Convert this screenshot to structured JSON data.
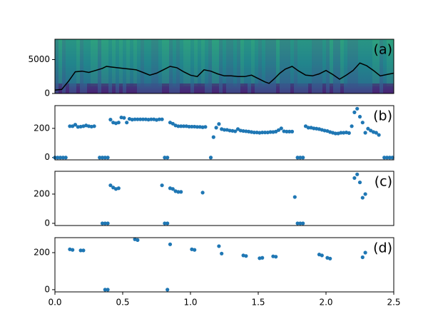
{
  "chart_data": [
    {
      "type": "line",
      "color": "#000000",
      "annotation": "(a)",
      "x": [
        0.0,
        0.05,
        0.1,
        0.15,
        0.2,
        0.25,
        0.3,
        0.35,
        0.38,
        0.42,
        0.5,
        0.55,
        0.6,
        0.65,
        0.7,
        0.75,
        0.8,
        0.85,
        0.9,
        0.95,
        1.0,
        1.05,
        1.1,
        1.15,
        1.2,
        1.25,
        1.3,
        1.35,
        1.4,
        1.45,
        1.5,
        1.55,
        1.58,
        1.62,
        1.66,
        1.7,
        1.75,
        1.8,
        1.85,
        1.9,
        1.95,
        2.0,
        2.05,
        2.1,
        2.15,
        2.2,
        2.25,
        2.3,
        2.35,
        2.4,
        2.45,
        2.5
      ],
      "values": [
        500,
        600,
        1800,
        3200,
        3300,
        3100,
        3400,
        3700,
        4000,
        3900,
        3700,
        3600,
        3500,
        3100,
        2700,
        3000,
        3500,
        4000,
        3800,
        3200,
        2700,
        2500,
        3500,
        3300,
        2900,
        2600,
        2600,
        2500,
        2500,
        2700,
        2200,
        1700,
        1500,
        2200,
        3000,
        3600,
        4000,
        3300,
        2700,
        2600,
        2900,
        3400,
        2800,
        2100,
        2700,
        3400,
        4500,
        4100,
        3400,
        2600,
        2800,
        3000
      ],
      "xlim": [
        0,
        2.5
      ],
      "ylim": [
        0,
        8000
      ],
      "yticks": [
        0,
        5000
      ]
    },
    {
      "type": "scatter",
      "color": "#1f77b4",
      "annotation": "(b)",
      "x": [
        0.0,
        0.02,
        0.04,
        0.06,
        0.08,
        0.11,
        0.13,
        0.15,
        0.17,
        0.19,
        0.21,
        0.23,
        0.25,
        0.27,
        0.29,
        0.33,
        0.35,
        0.37,
        0.39,
        0.41,
        0.43,
        0.45,
        0.47,
        0.49,
        0.51,
        0.53,
        0.55,
        0.57,
        0.59,
        0.61,
        0.63,
        0.65,
        0.67,
        0.69,
        0.71,
        0.73,
        0.75,
        0.77,
        0.79,
        0.81,
        0.83,
        0.85,
        0.87,
        0.89,
        0.91,
        0.93,
        0.95,
        0.97,
        0.99,
        1.01,
        1.03,
        1.05,
        1.07,
        1.09,
        1.11,
        1.15,
        1.17,
        1.19,
        1.21,
        1.23,
        1.25,
        1.27,
        1.29,
        1.31,
        1.33,
        1.35,
        1.37,
        1.39,
        1.41,
        1.43,
        1.45,
        1.47,
        1.49,
        1.51,
        1.53,
        1.55,
        1.57,
        1.59,
        1.61,
        1.63,
        1.65,
        1.67,
        1.69,
        1.71,
        1.73,
        1.75,
        1.79,
        1.81,
        1.83,
        1.85,
        1.87,
        1.89,
        1.91,
        1.93,
        1.95,
        1.97,
        1.99,
        2.01,
        2.03,
        2.05,
        2.07,
        2.09,
        2.11,
        2.13,
        2.15,
        2.17,
        2.19,
        2.21,
        2.23,
        2.25,
        2.27,
        2.29,
        2.31,
        2.33,
        2.35,
        2.37,
        2.39,
        2.43,
        2.45,
        2.47,
        2.49
      ],
      "values": [
        0,
        0,
        0,
        0,
        0,
        215,
        215,
        225,
        210,
        212,
        215,
        220,
        215,
        212,
        215,
        0,
        0,
        0,
        0,
        260,
        240,
        235,
        240,
        275,
        272,
        240,
        265,
        260,
        262,
        262,
        262,
        262,
        262,
        260,
        262,
        262,
        258,
        262,
        262,
        0,
        0,
        240,
        232,
        220,
        215,
        215,
        215,
        215,
        212,
        212,
        212,
        210,
        210,
        208,
        210,
        0,
        140,
        205,
        230,
        195,
        190,
        190,
        185,
        183,
        180,
        195,
        185,
        182,
        180,
        178,
        175,
        172,
        172,
        170,
        172,
        172,
        172,
        175,
        175,
        178,
        188,
        200,
        180,
        178,
        178,
        178,
        0,
        0,
        0,
        215,
        205,
        205,
        200,
        198,
        195,
        190,
        185,
        182,
        175,
        170,
        165,
        165,
        170,
        170,
        172,
        168,
        215,
        310,
        335,
        280,
        240,
        170,
        198,
        185,
        175,
        170,
        155,
        0,
        0,
        0,
        0
      ],
      "xlim": [
        0,
        2.5
      ],
      "ylim": [
        -16,
        356
      ],
      "yticks": [
        0,
        200
      ]
    },
    {
      "type": "scatter",
      "color": "#1f77b4",
      "annotation": "(c)",
      "x": [
        0.35,
        0.37,
        0.39,
        0.41,
        0.43,
        0.45,
        0.47,
        0.79,
        0.81,
        0.83,
        0.85,
        0.87,
        0.89,
        0.91,
        0.93,
        1.09,
        1.77,
        1.79,
        1.81,
        1.83,
        2.21,
        2.23,
        2.25,
        2.27,
        2.29
      ],
      "values": [
        0,
        0,
        0,
        260,
        245,
        235,
        240,
        260,
        0,
        0,
        240,
        235,
        220,
        215,
        215,
        210,
        180,
        0,
        0,
        0,
        310,
        335,
        280,
        175,
        200
      ],
      "xlim": [
        0,
        2.5
      ],
      "ylim": [
        -15,
        356
      ],
      "yticks": [
        0,
        200
      ]
    },
    {
      "type": "scatter",
      "color": "#1f77b4",
      "annotation": "(d)",
      "x": [
        0.11,
        0.13,
        0.19,
        0.21,
        0.37,
        0.39,
        0.59,
        0.61,
        0.83,
        0.85,
        1.01,
        1.03,
        1.21,
        1.23,
        1.39,
        1.41,
        1.51,
        1.53,
        1.61,
        1.63,
        1.95,
        1.97,
        2.01,
        2.03,
        2.27,
        2.29
      ],
      "values": [
        218,
        215,
        212,
        212,
        0,
        0,
        272,
        268,
        0,
        245,
        218,
        215,
        235,
        195,
        185,
        182,
        170,
        172,
        180,
        178,
        190,
        185,
        172,
        168,
        175,
        200
      ],
      "xlim": [
        0,
        2.5
      ],
      "ylim": [
        -12,
        281
      ],
      "yticks": [
        0,
        200
      ],
      "xticks": [
        {
          "value": 0,
          "label": "0.0"
        },
        0.5,
        {
          "value": 1,
          "label": "1.0"
        },
        1.5,
        {
          "value": 2,
          "label": "2.0"
        },
        2.5
      ]
    }
  ]
}
